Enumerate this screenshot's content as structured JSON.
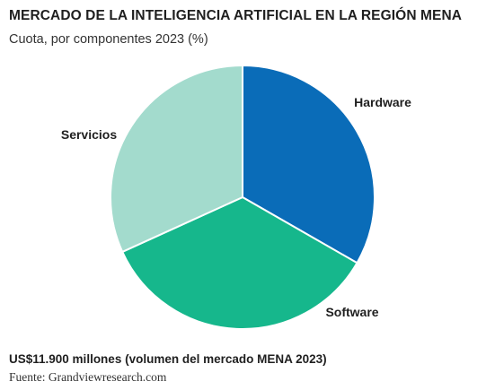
{
  "title": "MERCADO DE LA INTELIGENCIA ARTIFICIAL EN LA REGIÓN MENA",
  "subtitle": "Cuota, por componentes 2023 (%)",
  "footnote": "US$11.900 millones  (volumen del mercado MENA 2023)",
  "source": "Fuente: Grandviewresearch.com",
  "chart_data": {
    "type": "pie",
    "title": "MERCADO DE LA INTELIGENCIA ARTIFICIAL EN LA REGIÓN MENA",
    "subtitle": "Cuota, por componentes 2023 (%)",
    "slices": [
      {
        "label": "Hardware",
        "value": 33.3,
        "color": "#0a6cb8"
      },
      {
        "label": "Software",
        "value": 34.9,
        "color": "#16b78c"
      },
      {
        "label": "Servicios",
        "value": 31.8,
        "color": "#a3dbcd"
      }
    ],
    "start_angle_deg": 0,
    "direction": "clockwise",
    "labels_outside": true,
    "legend": "none"
  }
}
